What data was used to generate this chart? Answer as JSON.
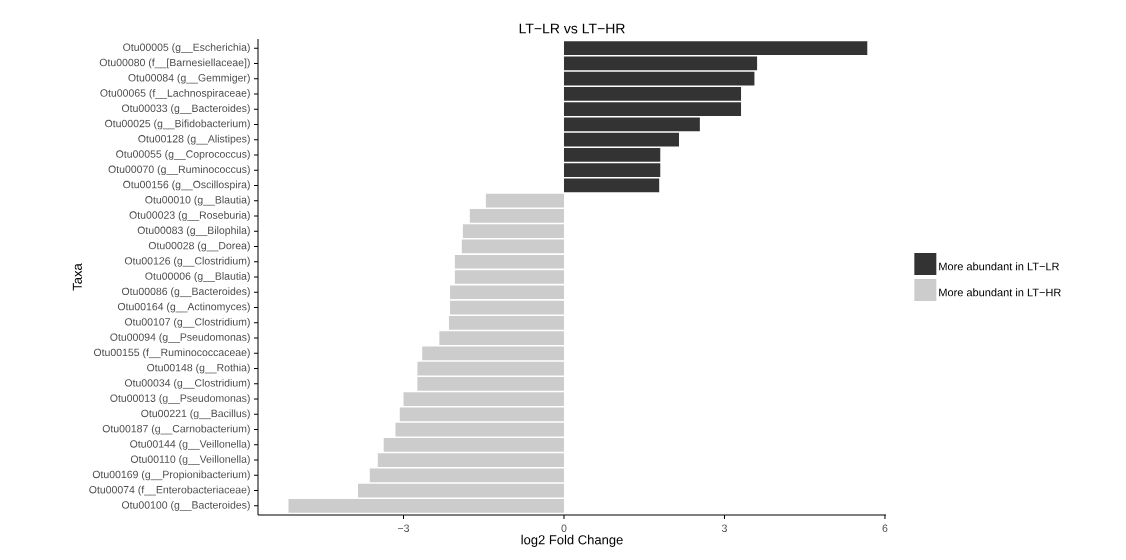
{
  "chart_data": {
    "type": "bar",
    "orientation": "horizontal",
    "title": "LT−LR vs LT−HR",
    "xlabel": "log2 Fold Change",
    "ylabel": "Taxa",
    "categories": [
      "Otu00005 (g__Escherichia)",
      "Otu00080 (f__[Barnesiellaceae])",
      "Otu00084 (g__Gemmiger)",
      "Otu00065 (f__Lachnospiraceae)",
      "Otu00033 (g__Bacteroides)",
      "Otu00025 (g__Bifidobacterium)",
      "Otu00128 (g__Alistipes)",
      "Otu00055 (g__Coprococcus)",
      "Otu00070 (g__Ruminococcus)",
      "Otu00156 (g__Oscillospira)",
      "Otu00010 (g__Blautia)",
      "Otu00023 (g__Roseburia)",
      "Otu00083 (g__Bilophila)",
      "Otu00028 (g__Dorea)",
      "Otu00126 (g__Clostridium)",
      "Otu00006 (g__Blautia)",
      "Otu00086 (g__Bacteroides)",
      "Otu00164 (g__Actinomyces)",
      "Otu00107 (g__Clostridium)",
      "Otu00094 (g__Pseudomonas)",
      "Otu00155 (f__Ruminococcaceae)",
      "Otu00148 (g__Rothia)",
      "Otu00034 (g__Clostridium)",
      "Otu00013 (g__Pseudomonas)",
      "Otu00221 (g__Bacillus)",
      "Otu00187 (g__Carnobacterium)",
      "Otu00144 (g__Veillonella)",
      "Otu00110 (g__Veillonella)",
      "Otu00169 (g__Propionibacterium)",
      "Otu00074 (f__Enterobacteriaceae)",
      "Otu00100 (g__Bacteroides)"
    ],
    "series": [
      {
        "name": "More abundant in LT−LR",
        "color": "#333333",
        "values": [
          5.67,
          3.61,
          3.56,
          3.31,
          3.31,
          2.54,
          2.15,
          1.8,
          1.8,
          1.78,
          null,
          null,
          null,
          null,
          null,
          null,
          null,
          null,
          null,
          null,
          null,
          null,
          null,
          null,
          null,
          null,
          null,
          null,
          null,
          null,
          null
        ]
      },
      {
        "name": "More abundant in LT−HR",
        "color": "#cccccc",
        "values": [
          null,
          null,
          null,
          null,
          null,
          null,
          null,
          null,
          null,
          null,
          -1.46,
          -1.76,
          -1.89,
          -1.91,
          -2.04,
          -2.04,
          -2.13,
          -2.13,
          -2.15,
          -2.33,
          -2.65,
          -2.74,
          -2.74,
          -3.0,
          -3.07,
          -3.15,
          -3.37,
          -3.48,
          -3.63,
          -3.85,
          -5.15
        ]
      }
    ],
    "xlim": [
      -5.72,
      6.02
    ],
    "xticks": [
      {
        "value": -3,
        "label": "−3"
      },
      0,
      3,
      6
    ],
    "grid": false,
    "legend": "right"
  }
}
